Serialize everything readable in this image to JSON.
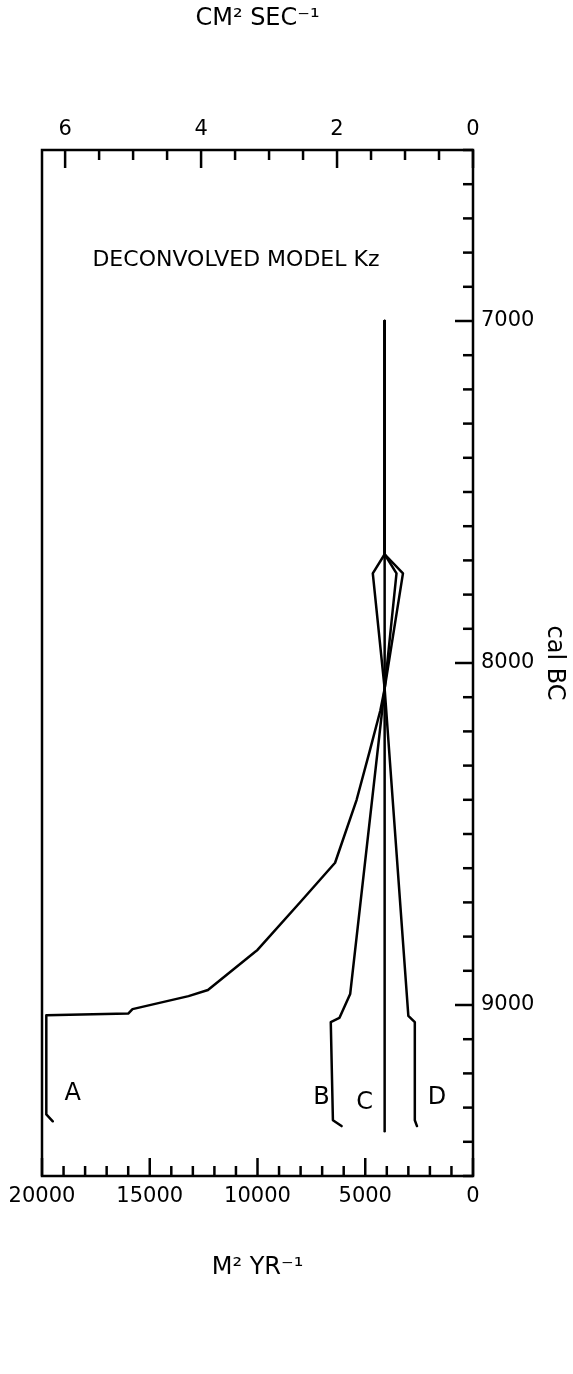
{
  "chart_data": {
    "type": "line",
    "title": "DECONVOLVED MODEL Kz",
    "xlabel": "M² YR⁻¹",
    "x2label": "CM² SEC⁻¹",
    "ylabel": "cal BC",
    "xlim": [
      20000,
      0
    ],
    "x2lim": [
      6.34,
      0
    ],
    "ylim": [
      9500,
      6500
    ],
    "xticks": [
      20000,
      {
        "value": 19000,
        "label": null
      },
      {
        "value": 18000,
        "label": null
      },
      {
        "value": 17000,
        "label": null
      },
      {
        "value": 16000,
        "label": null
      },
      15000,
      {
        "value": 14000,
        "label": null
      },
      {
        "value": 13000,
        "label": null
      },
      {
        "value": 12000,
        "label": null
      },
      {
        "value": 11000,
        "label": null
      },
      10000,
      {
        "value": 9000,
        "label": null
      },
      {
        "value": 8000,
        "label": null
      },
      {
        "value": 7000,
        "label": null
      },
      {
        "value": 6000,
        "label": null
      },
      5000,
      {
        "value": 4000,
        "label": null
      },
      {
        "value": 3000,
        "label": null
      },
      {
        "value": 2000,
        "label": null
      },
      {
        "value": 1000,
        "label": null
      },
      0
    ],
    "x2ticks": [
      6,
      {
        "value": 5.5,
        "label": null
      },
      {
        "value": 5,
        "label": null
      },
      {
        "value": 4.5,
        "label": null
      },
      4,
      {
        "value": 3.5,
        "label": null
      },
      {
        "value": 3,
        "label": null
      },
      {
        "value": 2.5,
        "label": null
      },
      2,
      {
        "value": 1.5,
        "label": null
      },
      {
        "value": 1,
        "label": null
      },
      {
        "value": 0.5,
        "label": null
      },
      0
    ],
    "yticks": [
      {
        "value": 9500,
        "label": null
      },
      {
        "value": 9400,
        "label": null
      },
      {
        "value": 9300,
        "label": null
      },
      {
        "value": 9200,
        "label": null
      },
      {
        "value": 9100,
        "label": null
      },
      9000,
      {
        "value": 8900,
        "label": null
      },
      {
        "value": 8800,
        "label": null
      },
      {
        "value": 8700,
        "label": null
      },
      {
        "value": 8600,
        "label": null
      },
      {
        "value": 8500,
        "label": null
      },
      {
        "value": 8400,
        "label": null
      },
      {
        "value": 8300,
        "label": null
      },
      {
        "value": 8200,
        "label": null
      },
      {
        "value": 8100,
        "label": null
      },
      8000,
      {
        "value": 7900,
        "label": null
      },
      {
        "value": 7800,
        "label": null
      },
      {
        "value": 7700,
        "label": null
      },
      {
        "value": 7600,
        "label": null
      },
      {
        "value": 7500,
        "label": null
      },
      {
        "value": 7400,
        "label": null
      },
      {
        "value": 7300,
        "label": null
      },
      {
        "value": 7200,
        "label": null
      },
      {
        "value": 7100,
        "label": null
      },
      7000,
      {
        "value": 6900,
        "label": null
      },
      {
        "value": 6800,
        "label": null
      },
      {
        "value": 6700,
        "label": null
      },
      {
        "value": 6600,
        "label": null
      },
      {
        "value": 6500,
        "label": null
      }
    ],
    "grid": false,
    "legend": false,
    "marker": "none",
    "line_style": "solid",
    "series": [
      {
        "name": "A",
        "color": "#000000",
        "x": [
          19500,
          19800,
          19800,
          16000,
          15800,
          13200,
          12300,
          10000,
          8000,
          6400,
          5400,
          4800,
          4300,
          4100,
          3250,
          4100,
          4100
        ],
        "values": [
          9340,
          9320,
          9030,
          9025,
          9012,
          8974,
          8956,
          8839,
          8698,
          8584,
          8400,
          8259,
          8139,
          8075,
          7738,
          7682,
          7000
        ]
      },
      {
        "name": "B",
        "color": "#000000",
        "x": [
          6100,
          6500,
          6600,
          6200,
          5700,
          4100,
          3550,
          4100,
          4100
        ],
        "values": [
          9354,
          9337,
          9050,
          9038,
          8968,
          8075,
          7738,
          7682,
          7000
        ]
      },
      {
        "name": "C",
        "color": "#000000",
        "x": [
          4100,
          4100
        ],
        "values": [
          9369,
          7000
        ]
      },
      {
        "name": "D",
        "color": "#000000",
        "x": [
          2600,
          2700,
          2700,
          3000,
          4100,
          4650,
          4100,
          4100
        ],
        "values": [
          9354,
          9337,
          9050,
          9032,
          8075,
          7738,
          7682,
          7000
        ]
      }
    ]
  }
}
